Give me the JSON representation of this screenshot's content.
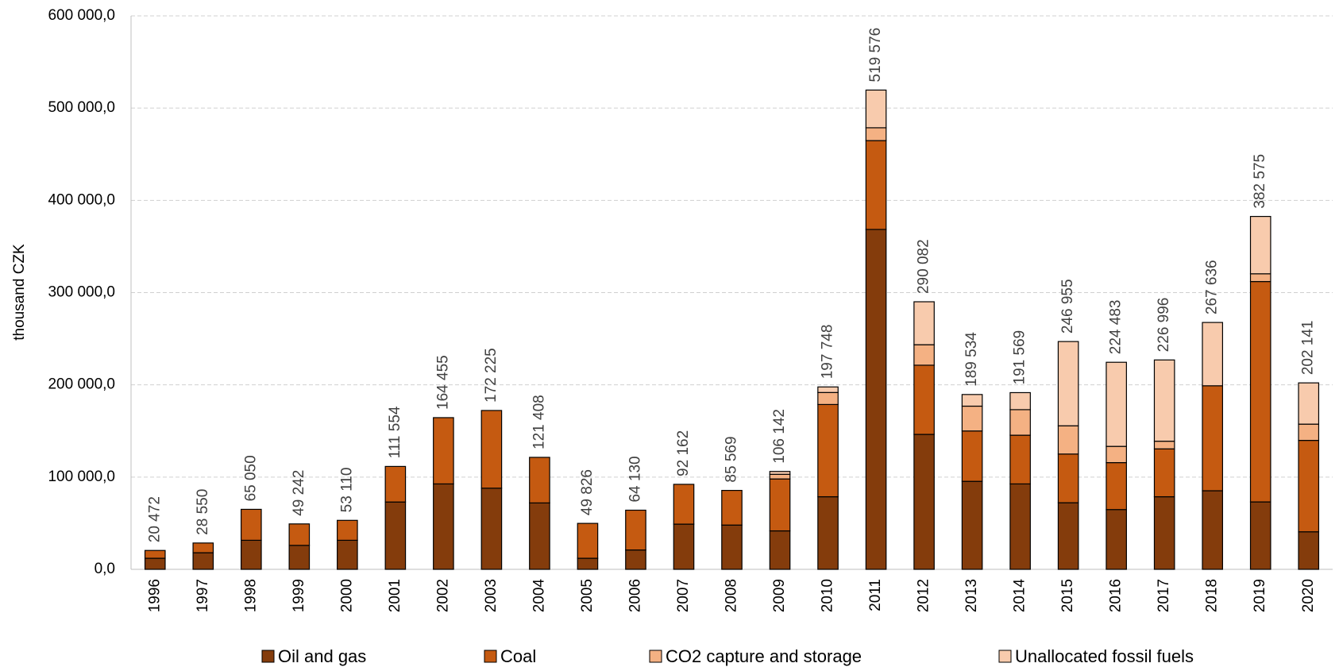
{
  "chart_data": {
    "type": "stacked-bar",
    "y_label": "thousand CZK",
    "categories": [
      "1996",
      "1997",
      "1998",
      "1999",
      "2000",
      "2001",
      "2002",
      "2003",
      "2004",
      "2005",
      "2006",
      "2007",
      "2008",
      "2009",
      "2010",
      "2011",
      "2012",
      "2013",
      "2014",
      "2015",
      "2016",
      "2017",
      "2018",
      "2019",
      "2020"
    ],
    "series": [
      {
        "name": "Oil and gas",
        "color": "#843c0c",
        "values": [
          12000,
          18000,
          31500,
          26000,
          31500,
          73000,
          92600,
          88000,
          72000,
          12000,
          21000,
          49000,
          48000,
          41700,
          78700,
          368500,
          146300,
          95400,
          92600,
          72200,
          64800,
          78700,
          85200,
          73100,
          40700
        ]
      },
      {
        "name": "Coal",
        "color": "#c55a11",
        "values": [
          8472,
          10550,
          33550,
          23242,
          21610,
          38554,
          71855,
          84225,
          49408,
          37826,
          43130,
          43162,
          37569,
          56300,
          100000,
          96300,
          75000,
          54600,
          52800,
          52800,
          50900,
          51900,
          113800,
          238900,
          99100
        ]
      },
      {
        "name": "CO2 capture and storage",
        "color": "#f4b183",
        "values": [
          0,
          0,
          0,
          0,
          0,
          0,
          0,
          0,
          0,
          0,
          0,
          0,
          0,
          5000,
          13000,
          13900,
          22200,
          26900,
          27700,
          30600,
          17600,
          8300,
          0,
          8400,
          17600
        ]
      },
      {
        "name": "Unallocated fossil fuels",
        "color": "#f8cbad",
        "values": [
          0,
          0,
          0,
          0,
          0,
          0,
          0,
          0,
          0,
          0,
          0,
          0,
          0,
          3142,
          6048,
          40876,
          46582,
          12634,
          18469,
          91355,
          91183,
          88096,
          68636,
          62175,
          44741
        ]
      }
    ],
    "totals": [
      20472,
      28550,
      65050,
      49242,
      53110,
      111554,
      164455,
      172225,
      121408,
      49826,
      64130,
      92162,
      85569,
      106142,
      197748,
      519576,
      290082,
      189534,
      191569,
      246955,
      224483,
      226996,
      267636,
      382575,
      202141
    ],
    "total_labels": [
      "20 472",
      "28 550",
      "65 050",
      "49 242",
      "53 110",
      "111 554",
      "164 455",
      "172 225",
      "121 408",
      "49 826",
      "64 130",
      "92 162",
      "85 569",
      "106 142",
      "197 748",
      "519 576",
      "290 082",
      "189 534",
      "191 569",
      "246 955",
      "224 483",
      "226 996",
      "267 636",
      "382 575",
      "202 141"
    ],
    "ylim": [
      0,
      600000
    ],
    "yticks": [
      {
        "value": 0,
        "label": "0,0"
      },
      {
        "value": 100000,
        "label": "100 000,0"
      },
      {
        "value": 200000,
        "label": "200 000,0"
      },
      {
        "value": 300000,
        "label": "300 000,0"
      },
      {
        "value": 400000,
        "label": "400 000,0"
      },
      {
        "value": 500000,
        "label": "500 000,0"
      },
      {
        "value": 600000,
        "label": "600 000,0"
      }
    ],
    "grid": true,
    "legend": "bottom"
  }
}
